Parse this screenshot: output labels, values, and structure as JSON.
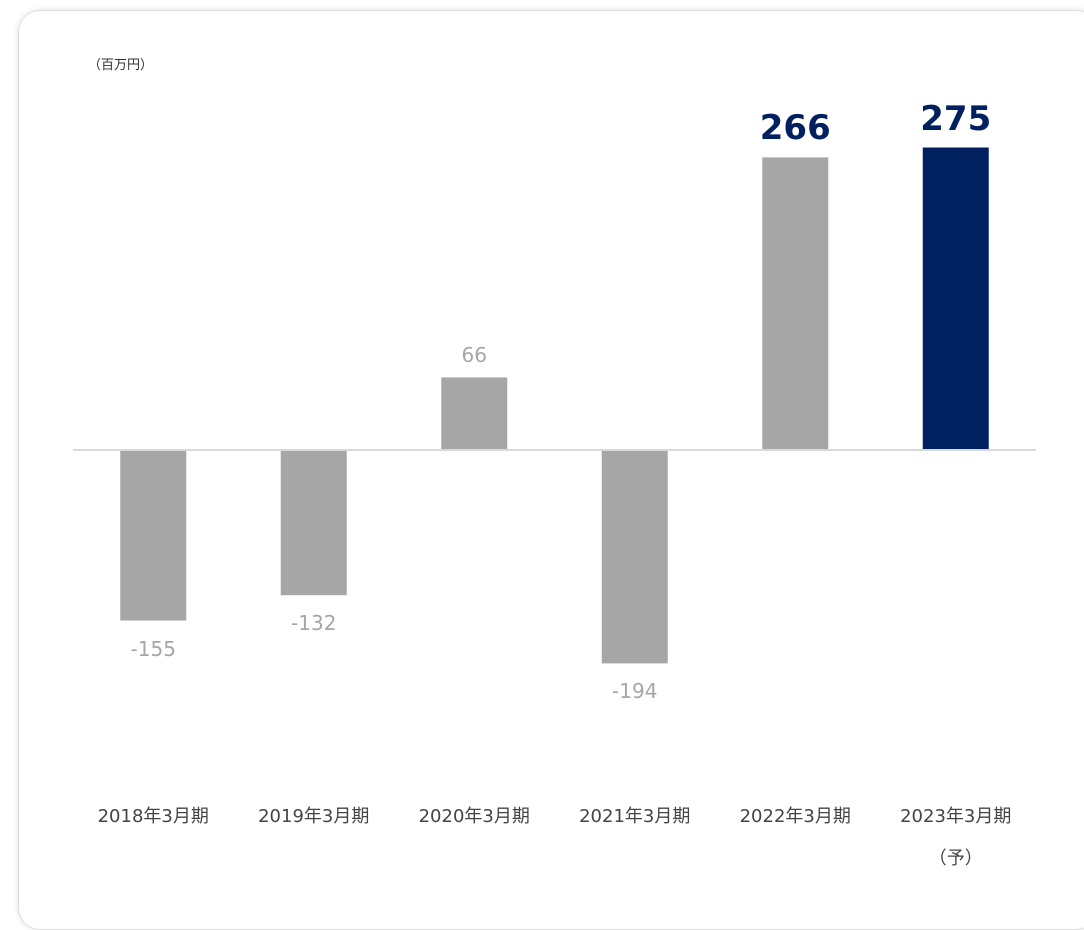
{
  "chart_data": {
    "type": "bar",
    "y_unit": "（百万円）",
    "categories": [
      "2018年3月期",
      "2019年3月期",
      "2020年3月期",
      "2021年3月期",
      "2022年3月期",
      "2023年3月期\n（予）"
    ],
    "values": [
      -155,
      -132,
      66,
      -194,
      266,
      275
    ],
    "colors": [
      "#a6a6a6",
      "#a6a6a6",
      "#a6a6a6",
      "#a6a6a6",
      "#a6a6a6",
      "#002060"
    ],
    "label_colors": [
      "#a6a6a6",
      "#a6a6a6",
      "#a6a6a6",
      "#a6a6a6",
      "#002060",
      "#002060"
    ],
    "label_weights": [
      "normal",
      "normal",
      "normal",
      "normal",
      "bold",
      "bold"
    ],
    "ylim": [
      -200,
      300
    ]
  }
}
